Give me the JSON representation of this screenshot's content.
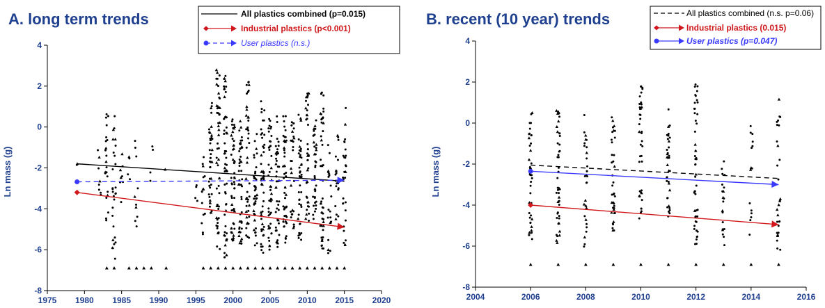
{
  "chart_data": [
    {
      "type": "scatter",
      "title": "A.  long term trends",
      "ylabel": "Ln mass (g)",
      "xlim": [
        1975,
        2020
      ],
      "ylim": [
        -8,
        4
      ],
      "xticks": [
        1975,
        1980,
        1985,
        1990,
        1995,
        2000,
        2005,
        2010,
        2015,
        2020
      ],
      "yticks": [
        -8,
        -6,
        -4,
        -2,
        0,
        2,
        4
      ],
      "legend_position": "top-right",
      "trend_lines": [
        {
          "key": "all",
          "name": "All plastics combined (p=0.015)",
          "color": "#000000",
          "style": "solid",
          "marker": "none",
          "x": [
            1979,
            2015
          ],
          "y": [
            -1.8,
            -2.65
          ]
        },
        {
          "key": "ind",
          "name": "Industrial plastics (p<0.001)",
          "color": "#d0181c",
          "style": "solid",
          "marker": "diamond",
          "x": [
            1979,
            2015
          ],
          "y": [
            -3.2,
            -4.9
          ]
        },
        {
          "key": "usr",
          "name": "User plastics (n.s.)",
          "color": "#3a3aff",
          "style": "dashed",
          "marker": "circle",
          "x": [
            1979,
            2015
          ],
          "y": [
            -2.68,
            -2.6
          ]
        }
      ],
      "point_columns": [
        {
          "x": 1979,
          "ymin": -1.9,
          "ymax": -1.7,
          "n": 2
        },
        {
          "x": 1982,
          "ymin": -3.5,
          "ymax": 0.1,
          "n": 8
        },
        {
          "x": 1983,
          "ymin": -4.6,
          "ymax": 0.7,
          "n": 22
        },
        {
          "x": 1984,
          "ymin": -6.5,
          "ymax": 0.6,
          "n": 28
        },
        {
          "x": 1985,
          "ymin": -3.8,
          "ymax": -1.3,
          "n": 8
        },
        {
          "x": 1986,
          "ymin": -2.9,
          "ymax": -1.4,
          "n": 4
        },
        {
          "x": 1987,
          "ymin": -5.0,
          "ymax": -0.2,
          "n": 10
        },
        {
          "x": 1989,
          "ymin": -3.6,
          "ymax": -0.8,
          "n": 4
        },
        {
          "x": 1991,
          "ymin": -2.1,
          "ymax": -1.9,
          "n": 1
        },
        {
          "x": 1995,
          "ymin": -3.8,
          "ymax": -2.6,
          "n": 4
        },
        {
          "x": 1996,
          "ymin": -5.8,
          "ymax": -1.3,
          "n": 14
        },
        {
          "x": 1997,
          "ymin": -4.2,
          "ymax": 1.2,
          "n": 40
        },
        {
          "x": 1998,
          "ymin": -6.0,
          "ymax": 2.8,
          "n": 55
        },
        {
          "x": 1999,
          "ymin": -6.4,
          "ymax": 2.6,
          "n": 55
        },
        {
          "x": 2000,
          "ymin": -5.6,
          "ymax": 0.5,
          "n": 50
        },
        {
          "x": 2001,
          "ymin": -5.8,
          "ymax": 0.4,
          "n": 50
        },
        {
          "x": 2002,
          "ymin": -5.6,
          "ymax": 2.3,
          "n": 45
        },
        {
          "x": 2003,
          "ymin": -5.8,
          "ymax": -0.3,
          "n": 40
        },
        {
          "x": 2004,
          "ymin": -6.2,
          "ymax": 1.3,
          "n": 50
        },
        {
          "x": 2005,
          "ymin": -6.0,
          "ymax": 0.4,
          "n": 45
        },
        {
          "x": 2006,
          "ymin": -5.9,
          "ymax": 0.6,
          "n": 45
        },
        {
          "x": 2007,
          "ymin": -5.7,
          "ymax": 0.6,
          "n": 45
        },
        {
          "x": 2008,
          "ymin": -5.0,
          "ymax": 0.4,
          "n": 30
        },
        {
          "x": 2009,
          "ymin": -5.6,
          "ymax": 0.6,
          "n": 40
        },
        {
          "x": 2010,
          "ymin": -4.6,
          "ymax": 1.8,
          "n": 40
        },
        {
          "x": 2011,
          "ymin": -4.6,
          "ymax": 0.6,
          "n": 35
        },
        {
          "x": 2012,
          "ymin": -6.0,
          "ymax": 1.9,
          "n": 50
        },
        {
          "x": 2013,
          "ymin": -6.4,
          "ymax": -0.7,
          "n": 20
        },
        {
          "x": 2014,
          "ymin": -5.4,
          "ymax": 0.4,
          "n": 20
        },
        {
          "x": 2015,
          "ymin": -6.0,
          "ymax": 1.2,
          "n": 30
        }
      ],
      "floor_points": {
        "y": -6.9,
        "x": [
          1983,
          1984,
          1986,
          1987,
          1988,
          1989,
          1991,
          1996,
          1997,
          1998,
          1999,
          2000,
          2001,
          2002,
          2003,
          2004,
          2005,
          2006,
          2007,
          2008,
          2009,
          2010,
          2011,
          2012,
          2013,
          2014,
          2015
        ]
      }
    },
    {
      "type": "scatter",
      "title": "B.  recent (10 year) trends",
      "ylabel": "Ln mass (g)",
      "xlim": [
        2004,
        2016
      ],
      "ylim": [
        -8,
        4
      ],
      "xticks": [
        2004,
        2006,
        2008,
        2010,
        2012,
        2014,
        2016
      ],
      "yticks": [
        -8,
        -6,
        -4,
        -2,
        0,
        2,
        4
      ],
      "legend_position": "top-right",
      "trend_lines": [
        {
          "key": "all",
          "name": "All plastics combined (n.s. p=0.06)",
          "color": "#000000",
          "style": "dashed",
          "marker": "none",
          "x": [
            2006,
            2015
          ],
          "y": [
            -2.05,
            -2.7
          ]
        },
        {
          "key": "ind",
          "name": "Industrial plastics (0.015)",
          "color": "#d0181c",
          "style": "solid",
          "marker": "diamond",
          "x": [
            2006,
            2015
          ],
          "y": [
            -4.0,
            -4.95
          ]
        },
        {
          "key": "usr",
          "name": "User plastics (p=0.047)",
          "color": "#3a3aff",
          "style": "solid",
          "marker": "circle",
          "x": [
            2006,
            2015
          ],
          "y": [
            -2.35,
            -3.0
          ]
        }
      ],
      "point_columns": [
        {
          "x": 2006,
          "ymin": -5.9,
          "ymax": 0.6,
          "n": 45
        },
        {
          "x": 2007,
          "ymin": -6.0,
          "ymax": 0.7,
          "n": 45
        },
        {
          "x": 2008,
          "ymin": -6.2,
          "ymax": 0.5,
          "n": 30
        },
        {
          "x": 2009,
          "ymin": -5.4,
          "ymax": 0.6,
          "n": 40
        },
        {
          "x": 2010,
          "ymin": -4.7,
          "ymax": 1.8,
          "n": 40
        },
        {
          "x": 2011,
          "ymin": -4.6,
          "ymax": 0.7,
          "n": 35
        },
        {
          "x": 2012,
          "ymin": -6.0,
          "ymax": 1.9,
          "n": 50
        },
        {
          "x": 2013,
          "ymin": -6.4,
          "ymax": -1.8,
          "n": 20
        },
        {
          "x": 2014,
          "ymin": -5.5,
          "ymax": 0.4,
          "n": 15
        },
        {
          "x": 2015,
          "ymin": -6.2,
          "ymax": 1.2,
          "n": 30
        }
      ],
      "floor_points": {
        "y": -6.9,
        "x": [
          2006,
          2007,
          2008,
          2009,
          2010,
          2011,
          2012,
          2013,
          2014,
          2015
        ]
      }
    }
  ]
}
